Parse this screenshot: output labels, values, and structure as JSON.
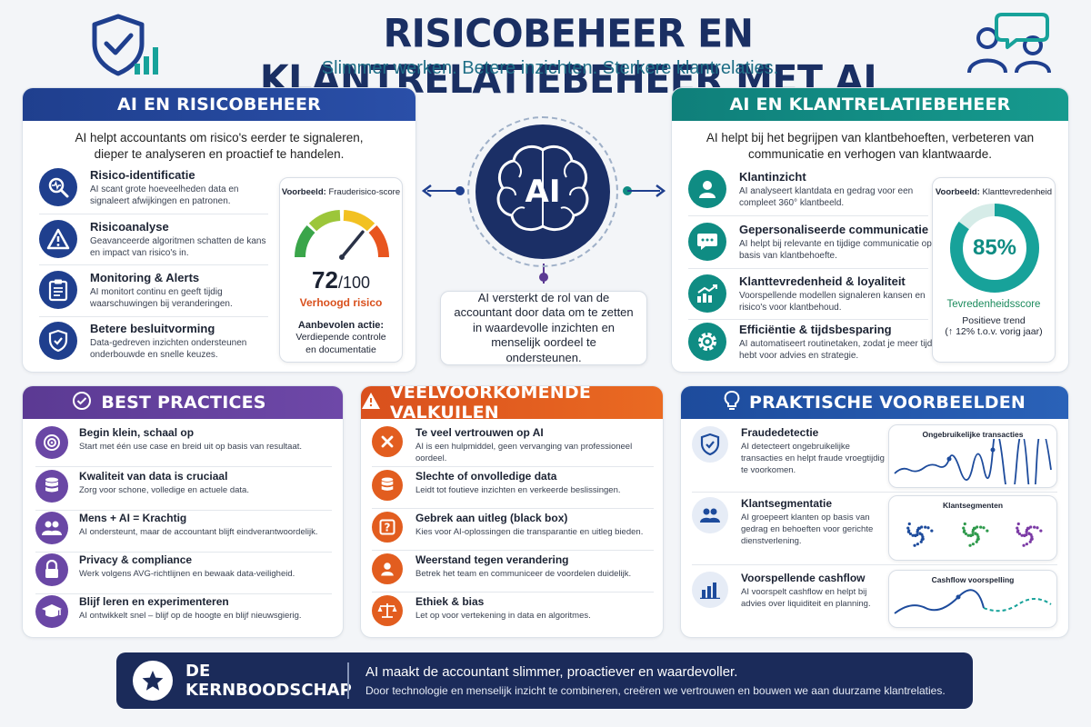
{
  "header": {
    "title": "RISICOBEHEER EN KLANTRELATIEBEHEER MET AI",
    "subtitle": "Slimmer werken. Betere inzichten. Sterkere klantrelaties."
  },
  "risk": {
    "title": "AI EN RISICOBEHEER",
    "intro": "AI helpt accountants om risico's eerder te signaleren, dieper te analyseren en proactief te handelen.",
    "items": [
      {
        "title": "Risico-identificatie",
        "desc": "AI scant grote hoeveelheden data en signaleert afwijkingen en patronen."
      },
      {
        "title": "Risicoanalyse",
        "desc": "Geavanceerde algoritmen schatten de kans en impact van risico's in."
      },
      {
        "title": "Monitoring & Alerts",
        "desc": "AI monitort continu en geeft tijdig waarschuwingen bij veranderingen."
      },
      {
        "title": "Betere besluitvorming",
        "desc": "Data-gedreven inzichten ondersteunen onderbouwde en snelle keuzes."
      }
    ],
    "example": {
      "label_bold": "Voorbeeld:",
      "label": "Frauderisico-score",
      "score": "72",
      "max": "/100",
      "score_value": 72,
      "status": "Verhoogd risico",
      "action_title": "Aanbevolen actie:",
      "action": "Verdiepende controle en documentatie"
    }
  },
  "center": {
    "ai_label": "AI",
    "text": "AI versterkt de rol van de accountant door data om te zetten in waardevolle inzichten en menselijk oordeel te ondersteunen."
  },
  "crm": {
    "title": "AI EN KLANTRELATIEBEHEER",
    "intro": "AI helpt bij het begrijpen van klantbehoeften, verbeteren van communicatie en verhogen van klantwaarde.",
    "items": [
      {
        "title": "Klantinzicht",
        "desc": "AI analyseert klantdata en gedrag voor een compleet 360° klantbeeld."
      },
      {
        "title": "Gepersonaliseerde communicatie",
        "desc": "AI helpt bij relevante en tijdige communicatie op basis van klantbehoefte."
      },
      {
        "title": "Klanttevredenheid & loyaliteit",
        "desc": "Voorspellende modellen signaleren kansen en risico's voor klantbehoud."
      },
      {
        "title": "Efficiëntie & tijdsbesparing",
        "desc": "AI automatiseert routinetaken, zodat je meer tijd hebt voor advies en strategie."
      }
    ],
    "example": {
      "label_bold": "Voorbeeld:",
      "label": "Klanttevredenheid",
      "percent": "85%",
      "percent_value": 0.85,
      "score_label": "Tevredenheidsscore",
      "trend": "Positieve trend",
      "trend_detail": "(↑ 12% t.o.v. vorig jaar)"
    }
  },
  "best": {
    "title": "BEST PRACTICES",
    "items": [
      {
        "title": "Begin klein, schaal op",
        "desc": "Start met één use case en breid uit op basis van resultaat."
      },
      {
        "title": "Kwaliteit van data is cruciaal",
        "desc": "Zorg voor schone, volledige en actuele data."
      },
      {
        "title": "Mens + AI = Krachtig",
        "desc": "AI ondersteunt, maar de accountant blijft eindverantwoordelijk."
      },
      {
        "title": "Privacy & compliance",
        "desc": "Werk volgens AVG-richtlijnen en bewaak data-veiligheid."
      },
      {
        "title": "Blijf leren en experimenteren",
        "desc": "AI ontwikkelt snel – blijf op de hoogte en blijf nieuwsgierig."
      }
    ]
  },
  "pitfalls": {
    "title": "VEELVOORKOMENDE VALKUILEN",
    "items": [
      {
        "title": "Te veel vertrouwen op AI",
        "desc": "AI is een hulpmiddel, geen vervanging van professioneel oordeel."
      },
      {
        "title": "Slechte of onvolledige data",
        "desc": "Leidt tot foutieve inzichten en verkeerde beslissingen."
      },
      {
        "title": "Gebrek aan uitleg (black box)",
        "desc": "Kies voor AI-oplossingen die transparantie en uitleg bieden."
      },
      {
        "title": "Weerstand tegen verandering",
        "desc": "Betrek het team en communiceer de voordelen duidelijk."
      },
      {
        "title": "Ethiek & bias",
        "desc": "Let op voor vertekening in data en algoritmes."
      }
    ]
  },
  "examples": {
    "title": "PRAKTISCHE VOORBEELDEN",
    "items": [
      {
        "title": "Fraudedetectie",
        "desc": "AI detecteert ongebruikelijke transacties en helpt fraude vroegtijdig te voorkomen.",
        "chart": "Ongebruikelijke transacties"
      },
      {
        "title": "Klantsegmentatie",
        "desc": "AI groepeert klanten op basis van gedrag en behoeften voor gerichte dienstverlening.",
        "chart": "Klantsegmenten"
      },
      {
        "title": "Voorspellende cashflow",
        "desc": "AI voorspelt cashflow en helpt bij advies over liquiditeit en planning.",
        "chart": "Cashflow voorspelling"
      }
    ]
  },
  "footer": {
    "label": "DE KERNBOODSCHAP",
    "line1": "AI maakt de accountant slimmer, proactiever en waardevoller.",
    "line2": "Door technologie en menselijk inzicht te combineren, creëren we vertrouwen en bouwen we aan duurzame klantrelaties."
  },
  "colors": {
    "navy": "#1b2f66",
    "blue": "#1f3f8e",
    "teal": "#0f8c83",
    "purple": "#5b3a93",
    "orange": "#e25d1f",
    "red_text": "#d9501d",
    "green_text": "#1a8a5c"
  }
}
